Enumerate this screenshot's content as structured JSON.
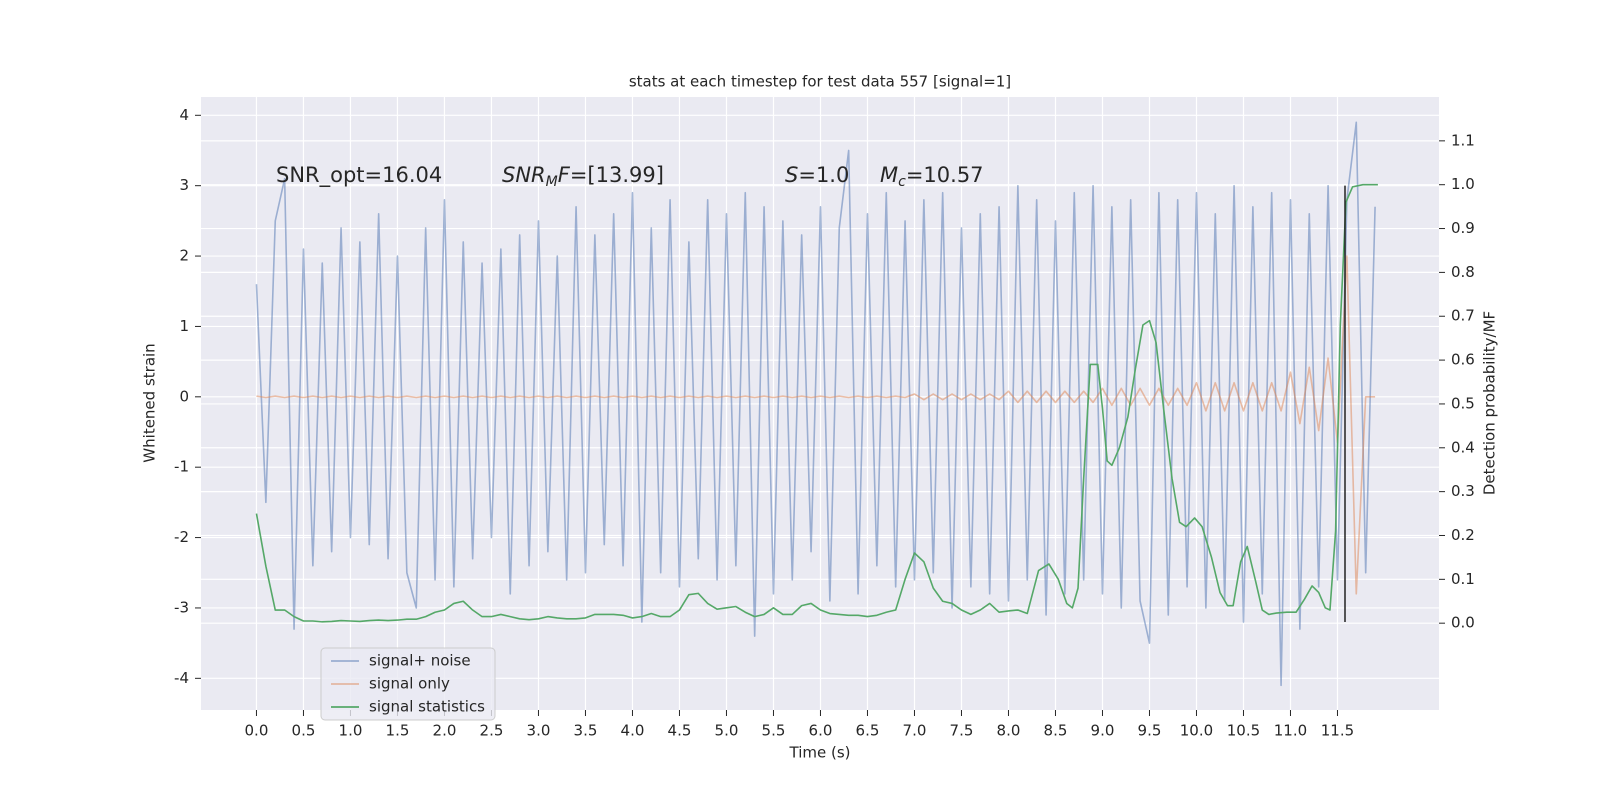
{
  "chart_data": {
    "type": "line",
    "title": "stats at each timestep for test data 557 [signal=1]",
    "xlabel": "Time (s)",
    "ylabel": "Whitened strain",
    "y2label": "Detection probability/MF",
    "annotations": [
      [
        "SNR_opt=16.04"
      ],
      [
        "SNR",
        "M",
        "F",
        "=[13.99]"
      ],
      [
        "S",
        "=1.0"
      ],
      [
        "M",
        "c",
        "=10.57"
      ]
    ],
    "xlim": [
      -0.59,
      12.58
    ],
    "ylim": [
      -4.45,
      4.26
    ],
    "y2lim": [
      -0.198,
      1.2
    ],
    "xticks": [
      {
        "value": 0,
        "label": "0.0"
      },
      0.5,
      {
        "value": 1,
        "label": "1.0"
      },
      1.5,
      {
        "value": 2,
        "label": "2.0"
      },
      2.5,
      {
        "value": 3,
        "label": "3.0"
      },
      3.5,
      {
        "value": 4,
        "label": "4.0"
      },
      4.5,
      {
        "value": 5,
        "label": "5.0"
      },
      5.5,
      {
        "value": 6,
        "label": "6.0"
      },
      6.5,
      {
        "value": 7,
        "label": "7.0"
      },
      7.5,
      {
        "value": 8,
        "label": "8.0"
      },
      8.5,
      {
        "value": 9,
        "label": "9.0"
      },
      9.5,
      {
        "value": 10,
        "label": "10.0"
      },
      10.5,
      {
        "value": 11,
        "label": "11.0"
      },
      11.5
    ],
    "yticks": [
      -4,
      -3,
      -2,
      -1,
      0,
      1,
      2,
      3,
      4
    ],
    "y2ticks": [
      {
        "value": 0,
        "label": "0.0"
      },
      0.1,
      0.2,
      0.3,
      0.4,
      0.5,
      0.6,
      0.7,
      0.8,
      0.9,
      {
        "value": 1,
        "label": "1.0"
      },
      1.1
    ],
    "grid": true,
    "legend": "lower left",
    "vline": {
      "x": 11.58,
      "ymin": -3.2,
      "ymax": 3.0,
      "color": "#222222"
    },
    "x": [
      0,
      0.1,
      0.2,
      0.3,
      0.4,
      0.5,
      0.6,
      0.7,
      0.8,
      0.9,
      1,
      1.1,
      1.2,
      1.3,
      1.4,
      1.5,
      1.6,
      1.7,
      1.8,
      1.9,
      2,
      2.1,
      2.2,
      2.3,
      2.4,
      2.5,
      2.6,
      2.7,
      2.8,
      2.9,
      3,
      3.1,
      3.2,
      3.3,
      3.4,
      3.5,
      3.6,
      3.7,
      3.8,
      3.9,
      4,
      4.1,
      4.2,
      4.3,
      4.4,
      4.5,
      4.6,
      4.7,
      4.8,
      4.9,
      5,
      5.1,
      5.2,
      5.3,
      5.4,
      5.5,
      5.6,
      5.7,
      5.8,
      5.9,
      6,
      6.1,
      6.2,
      6.3,
      6.4,
      6.5,
      6.6,
      6.7,
      6.8,
      6.9,
      7,
      7.1,
      7.2,
      7.3,
      7.4,
      7.5,
      7.6,
      7.7,
      7.8,
      7.9,
      8,
      8.1,
      8.2,
      8.3,
      8.4,
      8.5,
      8.6,
      8.7,
      8.8,
      8.9,
      9,
      9.1,
      9.2,
      9.3,
      9.4,
      9.5,
      9.6,
      9.7,
      9.8,
      9.9,
      10,
      10.1,
      10.2,
      10.3,
      10.4,
      10.5,
      10.6,
      10.7,
      10.8,
      10.9,
      11,
      11.1,
      11.2,
      11.3,
      11.4,
      11.5,
      11.6,
      11.7,
      11.8,
      11.9
    ],
    "series": [
      {
        "name": "signal+ noise",
        "color": "#4c72b0",
        "opacity": 0.5,
        "values": [
          1.6,
          -1.5,
          2.5,
          3.1,
          -3.3,
          2.1,
          -2.4,
          1.9,
          -2.2,
          2.4,
          -2.0,
          2.2,
          -2.1,
          2.6,
          -2.3,
          2.0,
          -2.5,
          -3.0,
          2.4,
          -2.6,
          2.8,
          -2.7,
          2.2,
          -2.3,
          1.9,
          -2.0,
          2.1,
          -2.8,
          2.3,
          -2.4,
          2.5,
          -2.2,
          2.0,
          -2.6,
          2.7,
          -2.5,
          2.3,
          -2.1,
          2.6,
          -2.4,
          2.9,
          -3.2,
          2.4,
          -2.5,
          2.8,
          -2.7,
          2.2,
          -2.3,
          2.8,
          -2.6,
          2.6,
          -2.4,
          2.9,
          -3.4,
          2.7,
          -2.8,
          2.5,
          -2.6,
          2.3,
          -2.2,
          2.7,
          -2.9,
          2.4,
          3.5,
          -2.8,
          2.6,
          -2.4,
          2.9,
          -2.7,
          2.5,
          -2.6,
          2.8,
          -2.5,
          2.9,
          -3.0,
          2.4,
          -2.7,
          2.6,
          -2.8,
          2.7,
          -2.9,
          3.0,
          -2.6,
          2.8,
          -3.1,
          2.5,
          -2.8,
          2.9,
          -2.6,
          3.0,
          -2.8,
          2.7,
          -3.0,
          2.8,
          -2.9,
          -3.5,
          2.9,
          -3.1,
          2.8,
          -2.7,
          2.9,
          -3.0,
          2.6,
          -2.9,
          3.0,
          -3.2,
          2.7,
          -2.8,
          2.9,
          -4.1,
          2.8,
          -3.3,
          2.6,
          -2.7,
          3.0,
          -2.6,
          2.8,
          3.9,
          -2.5,
          2.7
        ]
      },
      {
        "name": "signal only",
        "color": "#dd8452",
        "opacity": 0.5,
        "values": [
          0.01,
          -0.01,
          0.01,
          -0.01,
          0.01,
          -0.01,
          0.01,
          -0.01,
          0.01,
          -0.01,
          0.01,
          -0.01,
          0.01,
          -0.01,
          0.01,
          -0.01,
          0.01,
          -0.01,
          0.01,
          -0.01,
          0.01,
          -0.01,
          0.01,
          -0.01,
          0.01,
          -0.01,
          0.01,
          -0.01,
          0.01,
          -0.01,
          0.01,
          -0.01,
          0.01,
          -0.01,
          0.01,
          -0.01,
          0.01,
          -0.01,
          0.01,
          -0.01,
          0.01,
          -0.01,
          0.01,
          -0.01,
          0.01,
          -0.01,
          0.01,
          -0.01,
          0.01,
          -0.01,
          0.01,
          -0.01,
          0.01,
          -0.01,
          0.01,
          -0.01,
          0.01,
          -0.01,
          0.01,
          -0.01,
          0.01,
          -0.01,
          0.01,
          -0.01,
          0.01,
          -0.01,
          0.01,
          -0.01,
          0.01,
          -0.01,
          0.04,
          -0.04,
          0.04,
          -0.04,
          0.04,
          -0.04,
          0.04,
          -0.04,
          0.04,
          -0.04,
          0.08,
          -0.08,
          0.08,
          -0.08,
          0.08,
          -0.08,
          0.08,
          -0.08,
          0.08,
          -0.08,
          0.12,
          -0.12,
          0.12,
          -0.12,
          0.12,
          -0.12,
          0.12,
          -0.12,
          0.12,
          -0.12,
          0.2,
          -0.2,
          0.2,
          -0.2,
          0.2,
          -0.2,
          0.2,
          -0.2,
          0.2,
          -0.2,
          0.35,
          -0.38,
          0.42,
          -0.48,
          0.55,
          -0.65,
          2.0,
          -2.8,
          0.0,
          0.0
        ]
      },
      {
        "name": "signal statistics",
        "color": "#55a868",
        "opacity": 1,
        "axis": "y2",
        "x": [
          0,
          0.1,
          0.2,
          0.3,
          0.4,
          0.5,
          0.6,
          0.7,
          0.8,
          0.9,
          1,
          1.1,
          1.2,
          1.3,
          1.4,
          1.5,
          1.6,
          1.7,
          1.8,
          1.9,
          2,
          2.1,
          2.2,
          2.3,
          2.4,
          2.5,
          2.6,
          2.7,
          2.8,
          2.9,
          3,
          3.1,
          3.2,
          3.3,
          3.4,
          3.5,
          3.6,
          3.7,
          3.8,
          3.9,
          4,
          4.1,
          4.2,
          4.3,
          4.4,
          4.5,
          4.6,
          4.7,
          4.8,
          4.9,
          5,
          5.1,
          5.2,
          5.3,
          5.4,
          5.5,
          5.6,
          5.7,
          5.8,
          5.9,
          6,
          6.1,
          6.2,
          6.3,
          6.4,
          6.5,
          6.6,
          6.7,
          6.8,
          6.9,
          7,
          7.1,
          7.2,
          7.3,
          7.4,
          7.5,
          7.6,
          7.7,
          7.8,
          7.9,
          8,
          8.1,
          8.2,
          8.32,
          8.43,
          8.53,
          8.62,
          8.68,
          8.74,
          8.8,
          8.87,
          8.95,
          9.0,
          9.05,
          9.1,
          9.18,
          9.27,
          9.35,
          9.43,
          9.5,
          9.57,
          9.65,
          9.74,
          9.82,
          9.89,
          9.98,
          10.06,
          10.16,
          10.25,
          10.33,
          10.39,
          10.47,
          10.54,
          10.63,
          10.7,
          10.77,
          10.85,
          10.96,
          11.06,
          11.15,
          11.23,
          11.3,
          11.37,
          11.42,
          11.48,
          11.53,
          11.59,
          11.66,
          11.77,
          11.93
        ],
        "values": [
          0.25,
          0.13,
          0.03,
          0.03,
          0.015,
          0.005,
          0.005,
          0.003,
          0.004,
          0.006,
          0.005,
          0.004,
          0.006,
          0.007,
          0.006,
          0.007,
          0.009,
          0.009,
          0.015,
          0.025,
          0.03,
          0.045,
          0.05,
          0.03,
          0.015,
          0.015,
          0.02,
          0.015,
          0.01,
          0.008,
          0.01,
          0.015,
          0.012,
          0.01,
          0.01,
          0.012,
          0.02,
          0.02,
          0.02,
          0.018,
          0.012,
          0.015,
          0.022,
          0.015,
          0.015,
          0.03,
          0.065,
          0.068,
          0.045,
          0.032,
          0.035,
          0.038,
          0.025,
          0.015,
          0.02,
          0.035,
          0.02,
          0.02,
          0.04,
          0.045,
          0.03,
          0.022,
          0.02,
          0.018,
          0.018,
          0.015,
          0.018,
          0.025,
          0.03,
          0.1,
          0.16,
          0.14,
          0.08,
          0.05,
          0.045,
          0.03,
          0.02,
          0.03,
          0.045,
          0.025,
          0.028,
          0.03,
          0.022,
          0.12,
          0.135,
          0.1,
          0.045,
          0.035,
          0.08,
          0.33,
          0.59,
          0.59,
          0.49,
          0.37,
          0.36,
          0.4,
          0.47,
          0.58,
          0.68,
          0.69,
          0.64,
          0.49,
          0.33,
          0.23,
          0.22,
          0.24,
          0.22,
          0.15,
          0.07,
          0.04,
          0.04,
          0.14,
          0.175,
          0.095,
          0.03,
          0.02,
          0.023,
          0.025,
          0.025,
          0.055,
          0.085,
          0.07,
          0.035,
          0.03,
          0.21,
          0.68,
          0.96,
          0.995,
          1.0,
          1.0
        ]
      }
    ]
  }
}
